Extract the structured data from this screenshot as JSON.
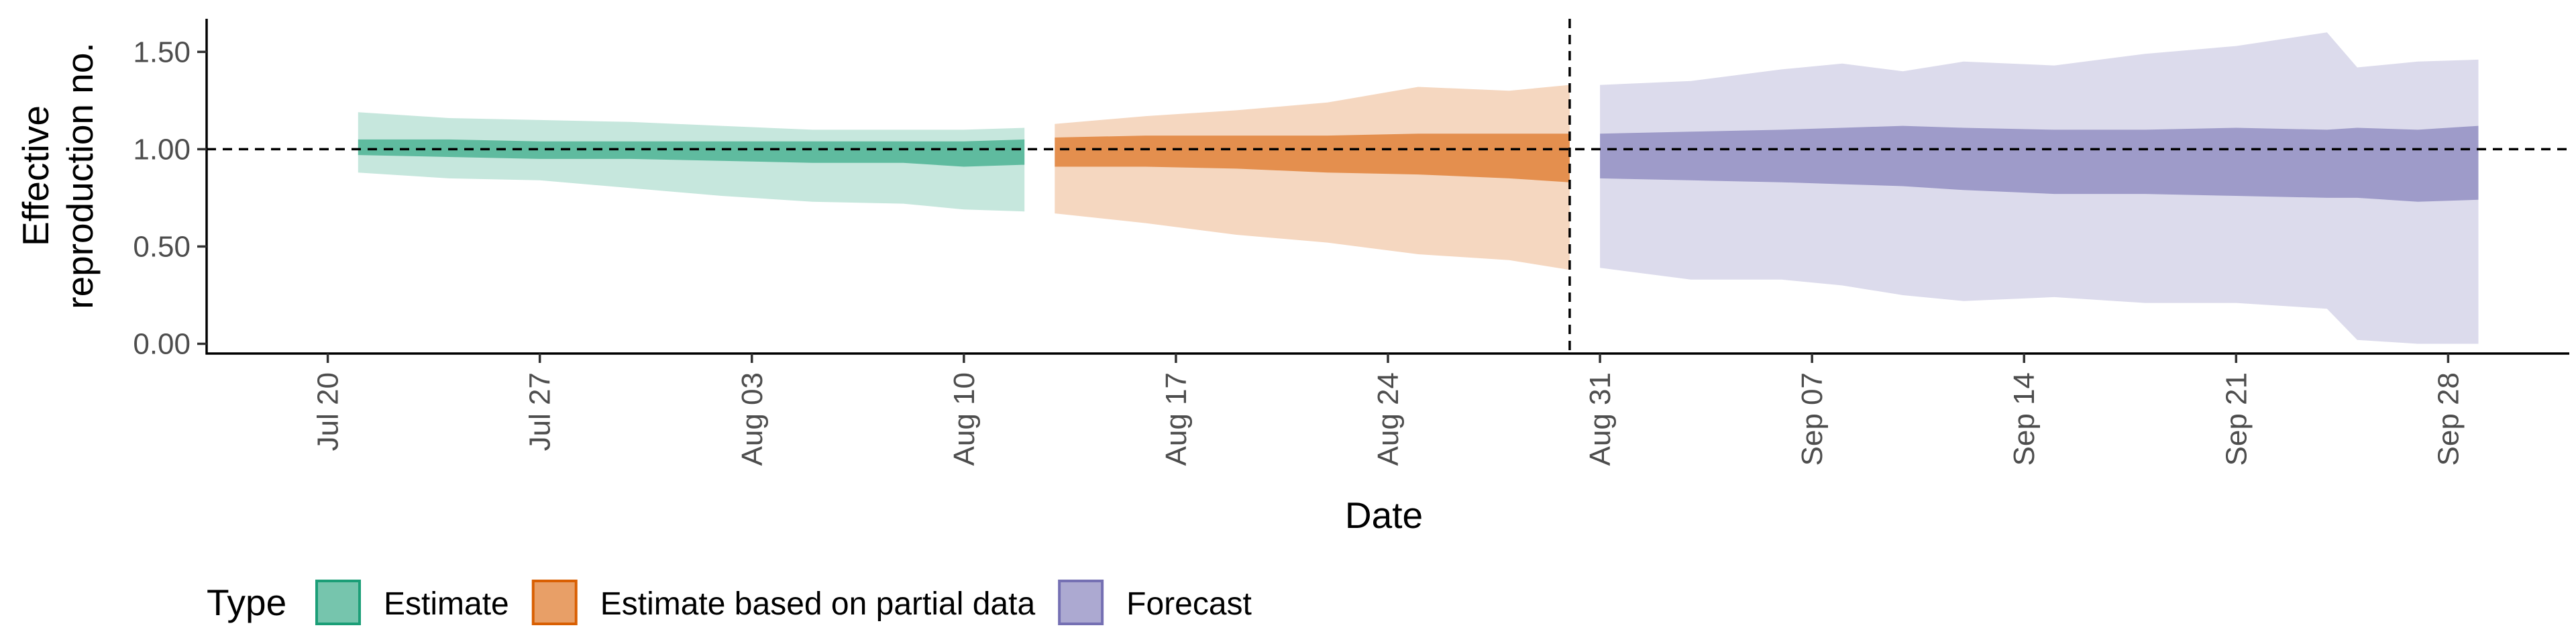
{
  "chart_data": {
    "type": "area",
    "title": "",
    "xlabel": "Date",
    "ylabel": "Effective reproduction no.",
    "ylabel_lines": [
      "Effective",
      "reproduction no."
    ],
    "x_ticks": [
      "Jul 20",
      "Jul 27",
      "Aug 03",
      "Aug 10",
      "Aug 17",
      "Aug 24",
      "Aug 31",
      "Sep 07",
      "Sep 14",
      "Sep 21",
      "Sep 28"
    ],
    "x_tick_dates": [
      "2020-07-20",
      "2020-07-27",
      "2020-08-03",
      "2020-08-10",
      "2020-08-17",
      "2020-08-24",
      "2020-08-31",
      "2020-09-07",
      "2020-09-14",
      "2020-09-21",
      "2020-09-28"
    ],
    "xlim": [
      "2020-07-16",
      "2020-10-02"
    ],
    "ylim": [
      -0.05,
      1.67
    ],
    "y_ticks": [
      "0.00",
      "0.50",
      "1.00",
      "1.50"
    ],
    "y_tick_values": [
      0,
      0.5,
      1,
      1.5
    ],
    "hline": 1.0,
    "vline": "2020-08-30",
    "grid": false,
    "legend": {
      "position": "bottom-left",
      "title": "Type",
      "entries": [
        "Estimate",
        "Estimate based on partial data",
        "Forecast"
      ]
    },
    "series": [
      {
        "name": "Estimate",
        "fill": "#1b9e77",
        "outer_alpha": 0.25,
        "inner_alpha": 0.6,
        "x": [
          "2020-07-21",
          "2020-07-24",
          "2020-07-27",
          "2020-07-30",
          "2020-08-02",
          "2020-08-05",
          "2020-08-08",
          "2020-08-10",
          "2020-08-12"
        ],
        "outer_upper": [
          1.19,
          1.16,
          1.15,
          1.14,
          1.12,
          1.1,
          1.1,
          1.1,
          1.11
        ],
        "outer_lower": [
          0.88,
          0.85,
          0.84,
          0.8,
          0.76,
          0.73,
          0.72,
          0.69,
          0.68
        ],
        "inner_upper": [
          1.05,
          1.05,
          1.04,
          1.04,
          1.04,
          1.04,
          1.04,
          1.04,
          1.05
        ],
        "inner_lower": [
          0.97,
          0.96,
          0.95,
          0.95,
          0.94,
          0.93,
          0.93,
          0.91,
          0.92
        ]
      },
      {
        "name": "Estimate based on partial data",
        "fill": "#d95f02",
        "outer_alpha": 0.25,
        "inner_alpha": 0.6,
        "x": [
          "2020-08-13",
          "2020-08-16",
          "2020-08-19",
          "2020-08-22",
          "2020-08-25",
          "2020-08-28",
          "2020-08-30"
        ],
        "outer_upper": [
          1.13,
          1.17,
          1.2,
          1.24,
          1.32,
          1.3,
          1.33
        ],
        "outer_lower": [
          0.67,
          0.62,
          0.56,
          0.52,
          0.46,
          0.43,
          0.38
        ],
        "inner_upper": [
          1.06,
          1.07,
          1.07,
          1.07,
          1.08,
          1.08,
          1.08
        ],
        "inner_lower": [
          0.91,
          0.91,
          0.9,
          0.88,
          0.87,
          0.85,
          0.83
        ]
      },
      {
        "name": "Forecast",
        "fill": "#7570b3",
        "outer_alpha": 0.25,
        "inner_alpha": 0.6,
        "x": [
          "2020-08-31",
          "2020-09-03",
          "2020-09-06",
          "2020-09-08",
          "2020-09-10",
          "2020-09-12",
          "2020-09-15",
          "2020-09-18",
          "2020-09-21",
          "2020-09-24",
          "2020-09-25",
          "2020-09-27",
          "2020-09-29"
        ],
        "outer_upper": [
          1.33,
          1.35,
          1.41,
          1.44,
          1.4,
          1.45,
          1.43,
          1.49,
          1.53,
          1.6,
          1.42,
          1.45,
          1.46
        ],
        "outer_lower": [
          0.39,
          0.33,
          0.33,
          0.3,
          0.25,
          0.22,
          0.24,
          0.21,
          0.21,
          0.18,
          0.02,
          0.0,
          0.0
        ],
        "inner_upper": [
          1.08,
          1.09,
          1.1,
          1.11,
          1.12,
          1.11,
          1.1,
          1.1,
          1.11,
          1.1,
          1.11,
          1.1,
          1.12
        ],
        "inner_lower": [
          0.85,
          0.84,
          0.83,
          0.82,
          0.81,
          0.79,
          0.77,
          0.77,
          0.76,
          0.75,
          0.75,
          0.73,
          0.74
        ]
      }
    ]
  }
}
